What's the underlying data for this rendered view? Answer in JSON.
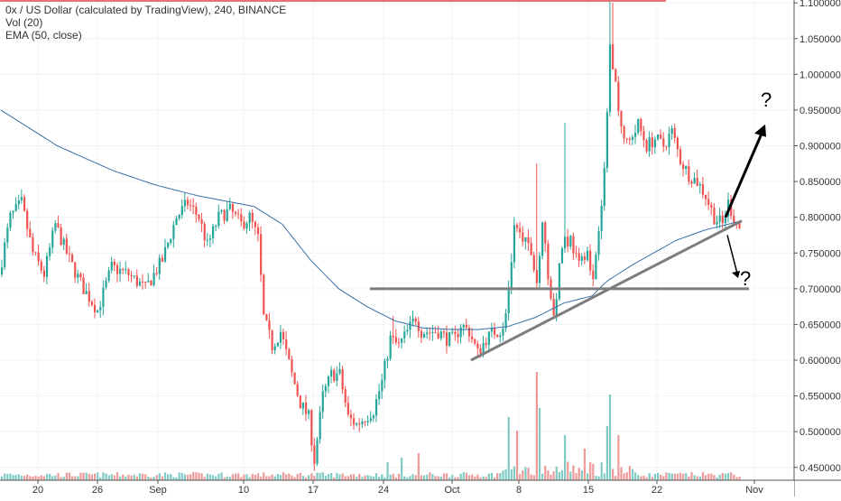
{
  "legend": {
    "line1": "0x / US Dollar (calculated by TradingView), 240, BINANCE",
    "line2": "Vol (20)",
    "line3": "EMA (50, close)"
  },
  "colors": {
    "up": "#26a69a",
    "down": "#ef5350",
    "ema": "#3a6ea5",
    "drawing": "#7d7d7d",
    "arrow": "#000000",
    "vol_up": "#80cbc4",
    "vol_down": "#ef9a9a"
  },
  "annotations": {
    "question_up": "?",
    "question_down": "?"
  },
  "chart_data": {
    "type": "candlestick",
    "title": "0x / US Dollar (calculated by TradingView), 240, BINANCE",
    "x_ticks": [
      "20",
      "26",
      "Sep",
      "10",
      "17",
      "24",
      "Oct",
      "8",
      "15",
      "22",
      "Nov"
    ],
    "y_ticks": [
      "1.100000",
      "1.050000",
      "1.000000",
      "0.950000",
      "0.900000",
      "0.850000",
      "0.800000",
      "0.750000",
      "0.700000",
      "0.650000",
      "0.600000",
      "0.550000",
      "0.500000",
      "0.450000"
    ],
    "ylim": [
      0.432,
      1.104
    ],
    "price_path": [
      [
        0,
        0.72
      ],
      [
        4,
        0.8
      ],
      [
        8,
        0.82
      ],
      [
        12,
        0.75
      ],
      [
        16,
        0.72
      ],
      [
        20,
        0.79
      ],
      [
        25,
        0.74
      ],
      [
        30,
        0.7
      ],
      [
        35,
        0.67
      ],
      [
        40,
        0.73
      ],
      [
        46,
        0.72
      ],
      [
        52,
        0.7
      ],
      [
        58,
        0.74
      ],
      [
        63,
        0.8
      ],
      [
        67,
        0.82
      ],
      [
        71,
        0.8
      ],
      [
        74,
        0.76
      ],
      [
        78,
        0.8
      ],
      [
        82,
        0.81
      ],
      [
        86,
        0.79
      ],
      [
        89,
        0.8
      ],
      [
        92,
        0.77
      ],
      [
        94,
        0.66
      ],
      [
        97,
        0.62
      ],
      [
        100,
        0.64
      ],
      [
        104,
        0.58
      ],
      [
        107,
        0.54
      ],
      [
        110,
        0.52
      ],
      [
        112,
        0.46
      ],
      [
        115,
        0.55
      ],
      [
        118,
        0.58
      ],
      [
        121,
        0.58
      ],
      [
        124,
        0.52
      ],
      [
        127,
        0.51
      ],
      [
        130,
        0.52
      ],
      [
        133,
        0.53
      ],
      [
        136,
        0.57
      ],
      [
        139,
        0.63
      ],
      [
        142,
        0.62
      ],
      [
        145,
        0.64
      ],
      [
        148,
        0.66
      ],
      [
        150,
        0.64
      ],
      [
        153,
        0.64
      ],
      [
        156,
        0.64
      ],
      [
        159,
        0.63
      ],
      [
        162,
        0.63
      ],
      [
        164,
        0.65
      ],
      [
        167,
        0.64
      ],
      [
        170,
        0.61
      ],
      [
        173,
        0.63
      ],
      [
        176,
        0.64
      ],
      [
        179,
        0.64
      ],
      [
        181,
        0.7
      ],
      [
        183,
        0.78
      ],
      [
        186,
        0.77
      ],
      [
        189,
        0.75
      ],
      [
        191,
        0.71
      ],
      [
        193,
        0.8
      ],
      [
        195,
        0.72
      ],
      [
        197,
        0.66
      ],
      [
        200,
        0.76
      ],
      [
        203,
        0.77
      ],
      [
        206,
        0.73
      ],
      [
        209,
        0.76
      ],
      [
        211,
        0.71
      ],
      [
        213,
        0.79
      ],
      [
        215,
        0.86
      ],
      [
        217,
        1.04
      ],
      [
        219,
        0.98
      ],
      [
        221,
        0.92
      ],
      [
        224,
        0.9
      ],
      [
        227,
        0.93
      ],
      [
        230,
        0.9
      ],
      [
        233,
        0.91
      ],
      [
        236,
        0.9
      ],
      [
        239,
        0.92
      ],
      [
        242,
        0.88
      ],
      [
        245,
        0.86
      ],
      [
        248,
        0.85
      ],
      [
        251,
        0.83
      ],
      [
        254,
        0.8
      ],
      [
        257,
        0.79
      ],
      [
        259,
        0.82
      ],
      [
        261,
        0.8
      ],
      [
        263,
        0.785
      ]
    ],
    "ema_path": [
      [
        0,
        0.95
      ],
      [
        20,
        0.9
      ],
      [
        40,
        0.865
      ],
      [
        55,
        0.845
      ],
      [
        70,
        0.83
      ],
      [
        90,
        0.815
      ],
      [
        100,
        0.79
      ],
      [
        110,
        0.74
      ],
      [
        120,
        0.7
      ],
      [
        130,
        0.675
      ],
      [
        140,
        0.655
      ],
      [
        150,
        0.645
      ],
      [
        160,
        0.643
      ],
      [
        170,
        0.643
      ],
      [
        180,
        0.647
      ],
      [
        190,
        0.66
      ],
      [
        200,
        0.68
      ],
      [
        210,
        0.69
      ],
      [
        215,
        0.71
      ],
      [
        225,
        0.735
      ],
      [
        240,
        0.768
      ],
      [
        250,
        0.782
      ],
      [
        263,
        0.795
      ]
    ],
    "support_line": {
      "start": [
        "Oct 3",
        0.6
      ],
      "end": [
        "Oct 29",
        0.795
      ]
    },
    "horizontal_line": {
      "start": [
        "Sep 20",
        0.7
      ],
      "end": [
        "Oct 29",
        0.7
      ],
      "price": 0.7
    },
    "arrow_up": {
      "start": [
        "Oct 29",
        0.82
      ],
      "end": [
        "Oct 31",
        0.93
      ]
    },
    "arrow_down": {
      "start": [
        "Oct 29",
        0.77
      ],
      "end": [
        "Oct 30",
        0.715
      ]
    },
    "grid": true
  }
}
